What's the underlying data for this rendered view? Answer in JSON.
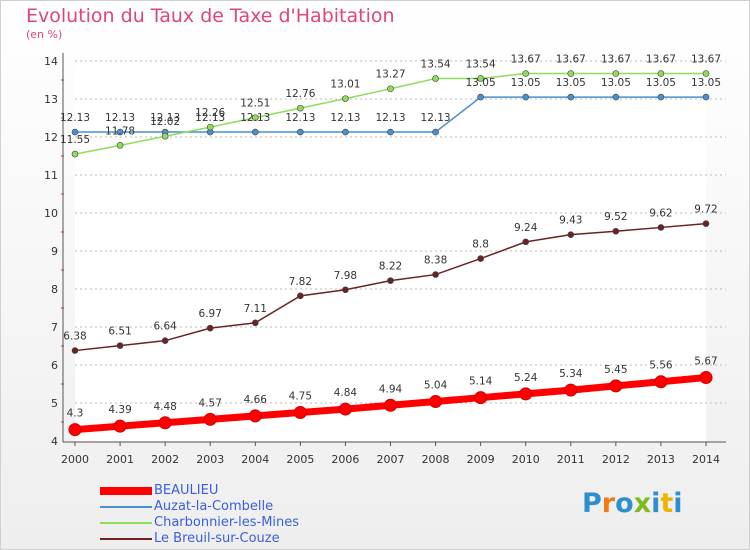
{
  "title": "Evolution du Taux de Taxe d'Habitation",
  "unit": "(en %)",
  "logo": {
    "text": "Proxiti",
    "colors": [
      "#2e8fd0",
      "#f07a14",
      "#2e8fd0",
      "#7dbb1e",
      "#2e8fd0",
      "#f0b400",
      "#2e8fd0"
    ]
  },
  "chart_data": {
    "type": "line",
    "x": [
      2000,
      2001,
      2002,
      2003,
      2004,
      2005,
      2006,
      2007,
      2008,
      2009,
      2010,
      2011,
      2012,
      2013,
      2014
    ],
    "ylim": [
      4,
      14
    ],
    "yticks": [
      4,
      5,
      6,
      7,
      8,
      9,
      10,
      11,
      12,
      13,
      14
    ],
    "grid": "dashed horizontal",
    "legend_position": "bottom-left",
    "series": [
      {
        "name": "BEAULIEU",
        "color": "#ff0000",
        "values": [
          4.3,
          4.39,
          4.48,
          4.57,
          4.66,
          4.75,
          4.84,
          4.94,
          5.04,
          5.14,
          5.24,
          5.34,
          5.45,
          5.56,
          5.67
        ],
        "labels": [
          "4.3",
          "4.39",
          "4.48",
          "4.57",
          "4.66",
          "4.75",
          "4.84",
          "4.94",
          "5.04",
          "5.14",
          "5.24",
          "5.34",
          "5.45",
          "5.56",
          "5.67"
        ]
      },
      {
        "name": "Auzat-la-Combelle",
        "color": "#4a8fd0",
        "values": [
          12.13,
          12.13,
          12.13,
          12.13,
          12.13,
          12.13,
          12.13,
          12.13,
          12.13,
          13.05,
          13.05,
          13.05,
          13.05,
          13.05,
          13.05
        ],
        "labels": [
          "12.13",
          "12.13",
          "12.13",
          "12.13",
          "12.13",
          "12.13",
          "12.13",
          "12.13",
          "12.13",
          "13.05",
          "13.05",
          "13.05",
          "13.05",
          "13.05",
          "13.05"
        ]
      },
      {
        "name": "Charbonnier-les-Mines",
        "color": "#8fdd5c",
        "values": [
          11.55,
          11.78,
          12.02,
          12.26,
          12.51,
          12.76,
          13.01,
          13.27,
          13.54,
          13.54,
          13.67,
          13.67,
          13.67,
          13.67,
          13.67
        ],
        "labels": [
          "11.55",
          "11.78",
          "12.02",
          "12.26",
          "12.51",
          "12.76",
          "13.01",
          "13.27",
          "13.54",
          "13.54",
          "13.67",
          "13.67",
          "13.67",
          "13.67",
          "13.67"
        ]
      },
      {
        "name": "Le Breuil-sur-Couze",
        "color": "#6b2222",
        "values": [
          6.38,
          6.51,
          6.64,
          6.97,
          7.11,
          7.82,
          7.98,
          8.22,
          8.38,
          8.8,
          9.24,
          9.43,
          9.52,
          9.62,
          9.72
        ],
        "labels": [
          "6.38",
          "6.51",
          "6.64",
          "6.97",
          "7.11",
          "7.82",
          "7.98",
          "8.22",
          "8.38",
          "8.8",
          "9.24",
          "9.43",
          "9.52",
          "9.62",
          "9.72"
        ]
      }
    ]
  }
}
